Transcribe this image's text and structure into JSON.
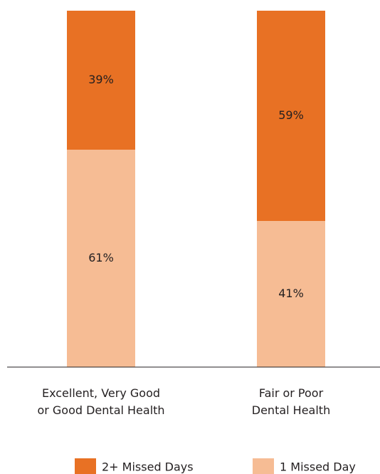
{
  "chart_data": {
    "type": "stacked_bar",
    "categories": [
      "Excellent, Very Good\nor Good Dental Health",
      "Fair or Poor\nDental Health"
    ],
    "series": [
      {
        "name": "2+ Missed Days",
        "color": "#e87124",
        "values": [
          39,
          59
        ],
        "value_labels": [
          "39%",
          "59%"
        ]
      },
      {
        "name": "1 Missed Day",
        "color": "#f6bc94",
        "values": [
          61,
          41
        ],
        "value_labels": [
          "61%",
          "41%"
        ]
      }
    ],
    "ylim": [
      0,
      100
    ],
    "legend": "bottom"
  }
}
